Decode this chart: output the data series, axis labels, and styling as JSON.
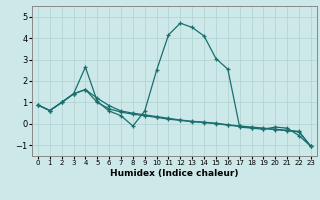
{
  "xlabel": "Humidex (Indice chaleur)",
  "background_color": "#cde8e8",
  "grid_color": "#b0d0d0",
  "line_color": "#1a6e6e",
  "xlim": [
    -0.5,
    23.5
  ],
  "ylim": [
    -1.5,
    5.5
  ],
  "yticks": [
    -1,
    0,
    1,
    2,
    3,
    4,
    5
  ],
  "xticks": [
    0,
    1,
    2,
    3,
    4,
    5,
    6,
    7,
    8,
    9,
    10,
    11,
    12,
    13,
    14,
    15,
    16,
    17,
    18,
    19,
    20,
    21,
    22,
    23
  ],
  "line1_x": [
    0,
    1,
    2,
    3,
    4,
    5,
    6,
    7,
    8,
    9,
    10,
    11,
    12,
    13,
    14,
    15,
    16,
    17,
    18,
    19,
    20,
    21,
    22,
    23
  ],
  "line1_y": [
    0.88,
    0.62,
    1.0,
    1.4,
    2.65,
    1.05,
    0.6,
    0.38,
    -0.1,
    0.6,
    2.5,
    4.15,
    4.7,
    4.5,
    4.1,
    3.05,
    2.55,
    -0.15,
    -0.2,
    -0.25,
    -0.15,
    -0.2,
    -0.55,
    -1.05
  ],
  "line2_x": [
    0,
    1,
    2,
    3,
    4,
    5,
    6,
    7,
    8,
    9,
    10,
    11,
    12,
    13,
    14,
    15,
    16,
    17,
    18,
    19,
    20,
    21,
    22,
    23
  ],
  "line2_y": [
    0.88,
    0.62,
    1.0,
    1.4,
    1.6,
    1.2,
    0.85,
    0.6,
    0.5,
    0.42,
    0.34,
    0.26,
    0.18,
    0.12,
    0.08,
    0.03,
    -0.04,
    -0.1,
    -0.15,
    -0.2,
    -0.25,
    -0.3,
    -0.35,
    -1.05
  ],
  "line3_x": [
    0,
    1,
    2,
    3,
    4,
    5,
    6,
    7,
    8,
    9,
    10,
    11,
    12,
    13,
    14,
    15,
    16,
    17,
    18,
    19,
    20,
    21,
    22,
    23
  ],
  "line3_y": [
    0.88,
    0.62,
    1.0,
    1.4,
    1.6,
    1.0,
    0.7,
    0.55,
    0.45,
    0.38,
    0.3,
    0.22,
    0.16,
    0.1,
    0.06,
    0.01,
    -0.06,
    -0.12,
    -0.17,
    -0.22,
    -0.27,
    -0.32,
    -0.38,
    -1.05
  ]
}
